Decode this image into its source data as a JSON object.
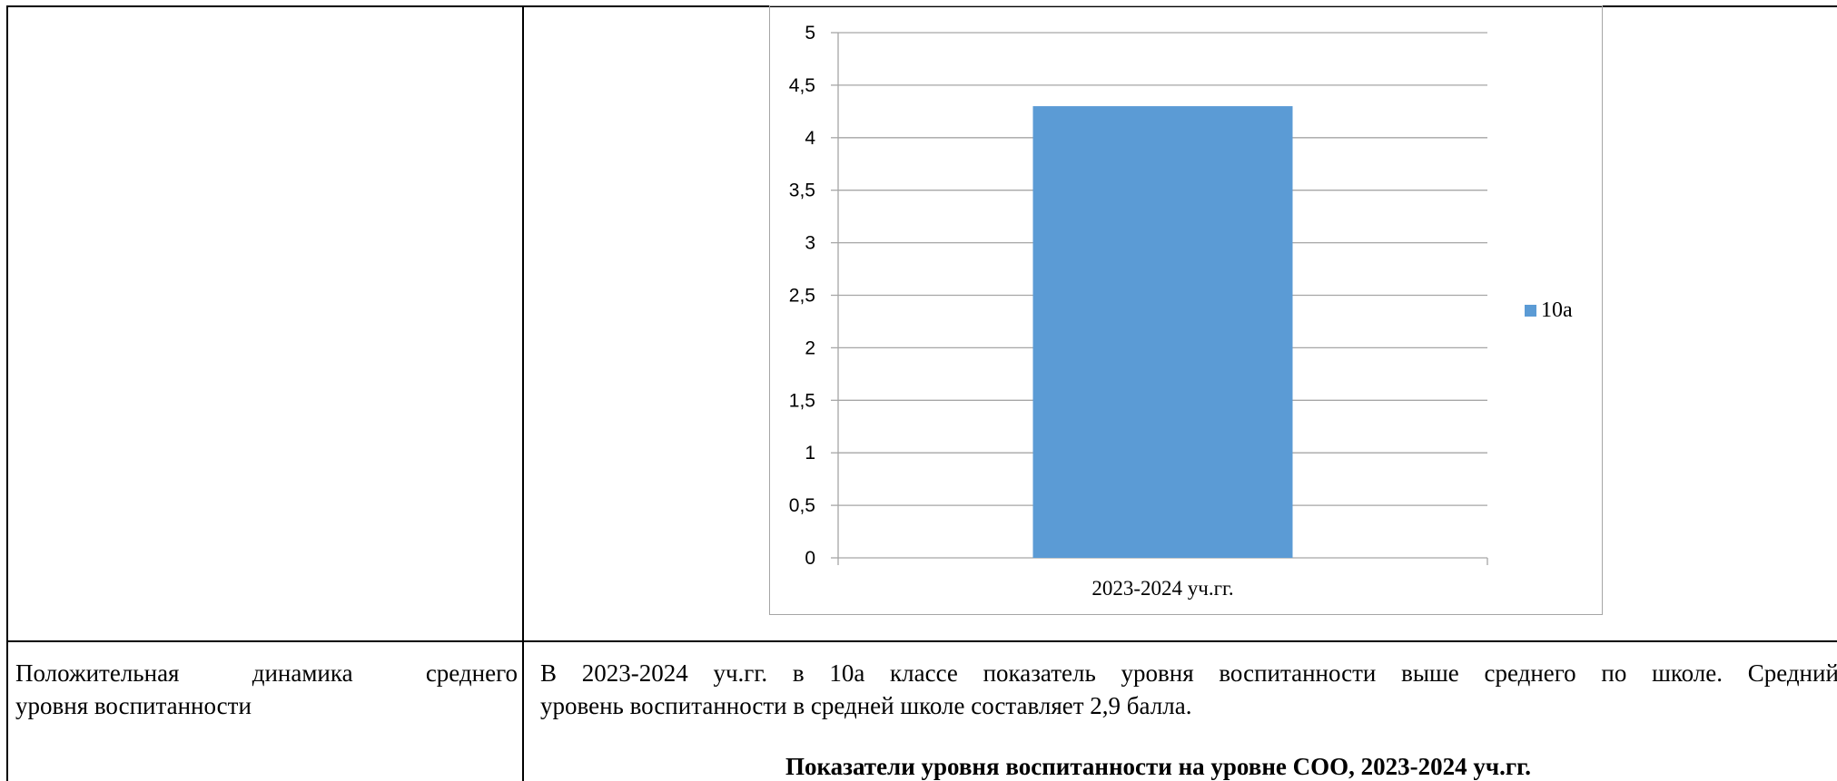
{
  "table": {
    "row_label": "Положительная динамика среднего уровня воспитанности",
    "row_label_words_line1": [
      "Положительная",
      "динамика",
      "среднего"
    ],
    "row_label_line2": "уровня воспитанности",
    "description_line1_words": [
      "В",
      "2023-2024",
      "уч.гг.",
      "в",
      "10а",
      "классе",
      "показатель",
      "уровня",
      "воспитанности",
      "выше",
      "среднего",
      "по",
      "школе.",
      "Средний"
    ],
    "description_line2": "уровень воспитанности в средней школе составляет 2,9 балла.",
    "next_heading": "Показатели уровня воспитанности на уровне СОО, 2023-2024 уч.гг."
  },
  "chart_data": {
    "type": "bar",
    "categories": [
      "2023-2024 уч.гг."
    ],
    "series": [
      {
        "name": "10а",
        "values": [
          4.3
        ]
      }
    ],
    "ylim": [
      0,
      5
    ],
    "yticks": [
      "0",
      "0,5",
      "1",
      "1,5",
      "2",
      "2,5",
      "3",
      "3,5",
      "4",
      "4,5",
      "5"
    ],
    "grid": true,
    "legend_position": "right",
    "colors": {
      "series": "#5b9bd5",
      "grid": "#a6a6a6",
      "frame": "#a6a6a6"
    }
  }
}
